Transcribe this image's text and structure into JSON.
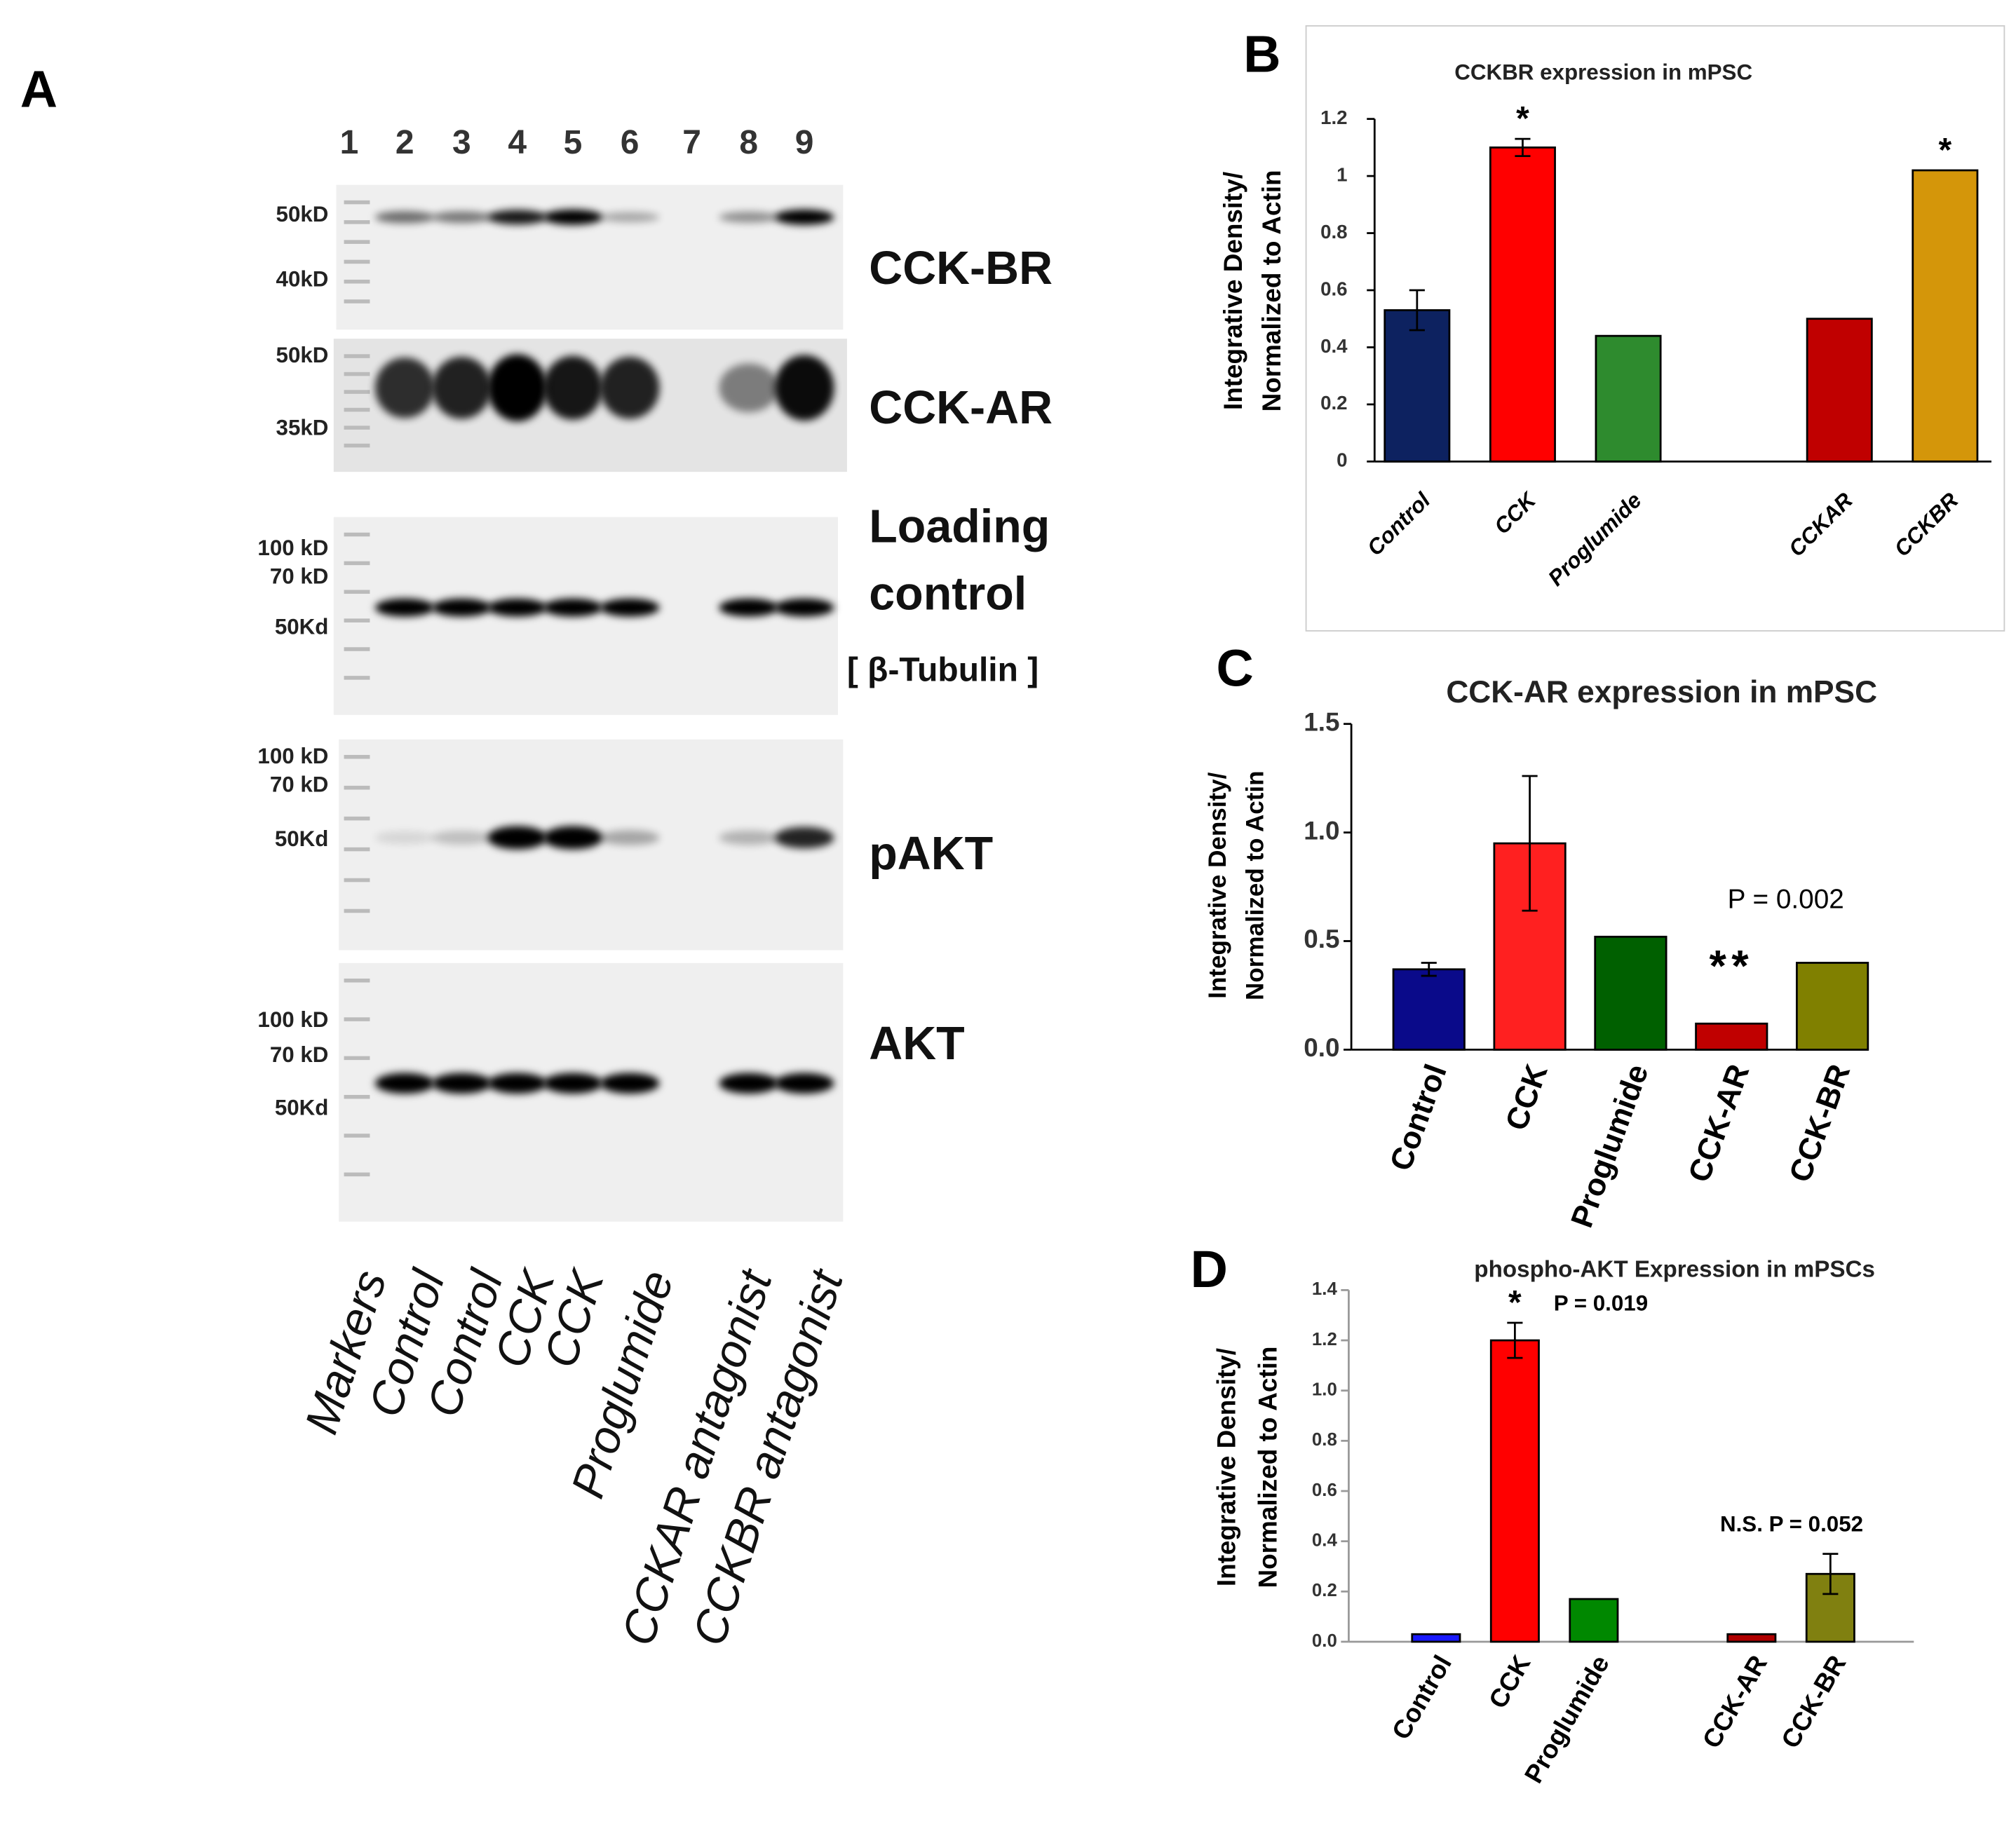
{
  "blot": {
    "panel": "A",
    "lanes": [
      "1",
      "2",
      "3",
      "4",
      "5",
      "6",
      "7",
      "8",
      "9"
    ],
    "blots": [
      {
        "name": [
          "CCK-BR"
        ],
        "markers": [
          "50kD",
          "40kD"
        ]
      },
      {
        "name": [
          "CCK-AR"
        ],
        "markers": [
          "50kD",
          "35kD"
        ]
      },
      {
        "name": [
          "Loading",
          "control",
          "[ β-Tubulin ]"
        ],
        "markers": [
          "100 kD",
          "70 kD",
          "50Kd"
        ]
      },
      {
        "name": [
          "pAKT"
        ],
        "markers": [
          "100 kD",
          "70 kD",
          "50Kd"
        ]
      },
      {
        "name": [
          "AKT"
        ],
        "markers": [
          "100 kD",
          "70 kD",
          "50Kd"
        ]
      }
    ],
    "lane_labels": [
      "Markers",
      "Control",
      "Control",
      "CCK",
      "CCK",
      "Proglumide",
      "CCKAR antagonist",
      "CCKBR antagonist"
    ]
  },
  "chart_data": [
    {
      "type": "bar",
      "panel": "B",
      "title": "CCKBR expression in mPSC",
      "ylabel": [
        "Integrative Density/",
        "Normalized to Actin"
      ],
      "categories": [
        "Control",
        "CCK",
        "Proglumide",
        null,
        "CCKAR",
        "CCKBR"
      ],
      "values": [
        0.53,
        1.1,
        0.44,
        null,
        0.5,
        1.02
      ],
      "errors": [
        0.07,
        0.03,
        null,
        null,
        null,
        null
      ],
      "colors": [
        "#0d2260",
        "#ff0000",
        "#2e8b2e",
        null,
        "#c00000",
        "#d4960a"
      ],
      "stars": [
        null,
        "*",
        null,
        null,
        null,
        "*"
      ],
      "ylim": [
        0,
        1.2
      ],
      "yticks": [
        0,
        0.2,
        0.4,
        0.6,
        0.8,
        1,
        1.2
      ]
    },
    {
      "type": "bar",
      "panel": "C",
      "title": "CCK-AR expression in mPSC",
      "ylabel": [
        "Integrative Density/",
        "Normalized to Actin"
      ],
      "categories": [
        "Control",
        "CCK",
        "Proglumide",
        "CCK-AR",
        "CCK-BR"
      ],
      "values": [
        0.37,
        0.95,
        0.52,
        0.12,
        0.4
      ],
      "errors": [
        0.03,
        0.31,
        null,
        null,
        null
      ],
      "colors": [
        "#0a0a8a",
        "#ff2020",
        "#006000",
        "#c00000",
        "#808000"
      ],
      "stars": [
        null,
        null,
        null,
        "**",
        null
      ],
      "p_values": [
        null,
        null,
        null,
        "P = 0.002",
        null
      ],
      "ylim": [
        0,
        1.5
      ],
      "yticks": [
        {
          "value": 0,
          "label": "0.0"
        },
        {
          "value": 0.5,
          "label": "0.5"
        },
        {
          "value": 1,
          "label": "1.0"
        },
        {
          "value": 1.5,
          "label": "1.5"
        }
      ]
    },
    {
      "type": "bar",
      "panel": "D",
      "title": "phospho-AKT  Expression in mPSCs",
      "ylabel": [
        "Integrative Density/",
        "Normalized to Actin"
      ],
      "categories": [
        "Control",
        "CCK",
        "Proglumide",
        null,
        "CCK-AR",
        "CCK-BR"
      ],
      "values": [
        0.03,
        1.2,
        0.17,
        null,
        0.03,
        0.27
      ],
      "errors": [
        null,
        0.07,
        null,
        null,
        null,
        0.08
      ],
      "colors": [
        "#1a1aff",
        "#ff0000",
        "#008800",
        null,
        "#b00000",
        "#808010"
      ],
      "stars": [
        null,
        "*",
        null,
        null,
        null,
        null
      ],
      "p_values": [
        null,
        "P = 0.019",
        null,
        null,
        null,
        "N.S. P = 0.052"
      ],
      "ylim": [
        0,
        1.4
      ],
      "yticks": [
        {
          "value": 0,
          "label": "0.0"
        },
        {
          "value": 0.2,
          "label": "0.2"
        },
        {
          "value": 0.4,
          "label": "0.4"
        },
        {
          "value": 0.6,
          "label": "0.6"
        },
        {
          "value": 0.8,
          "label": "0.8"
        },
        {
          "value": 1,
          "label": "1.0"
        },
        {
          "value": 1.2,
          "label": "1.2"
        },
        {
          "value": 1.4,
          "label": "1.4"
        }
      ]
    }
  ]
}
